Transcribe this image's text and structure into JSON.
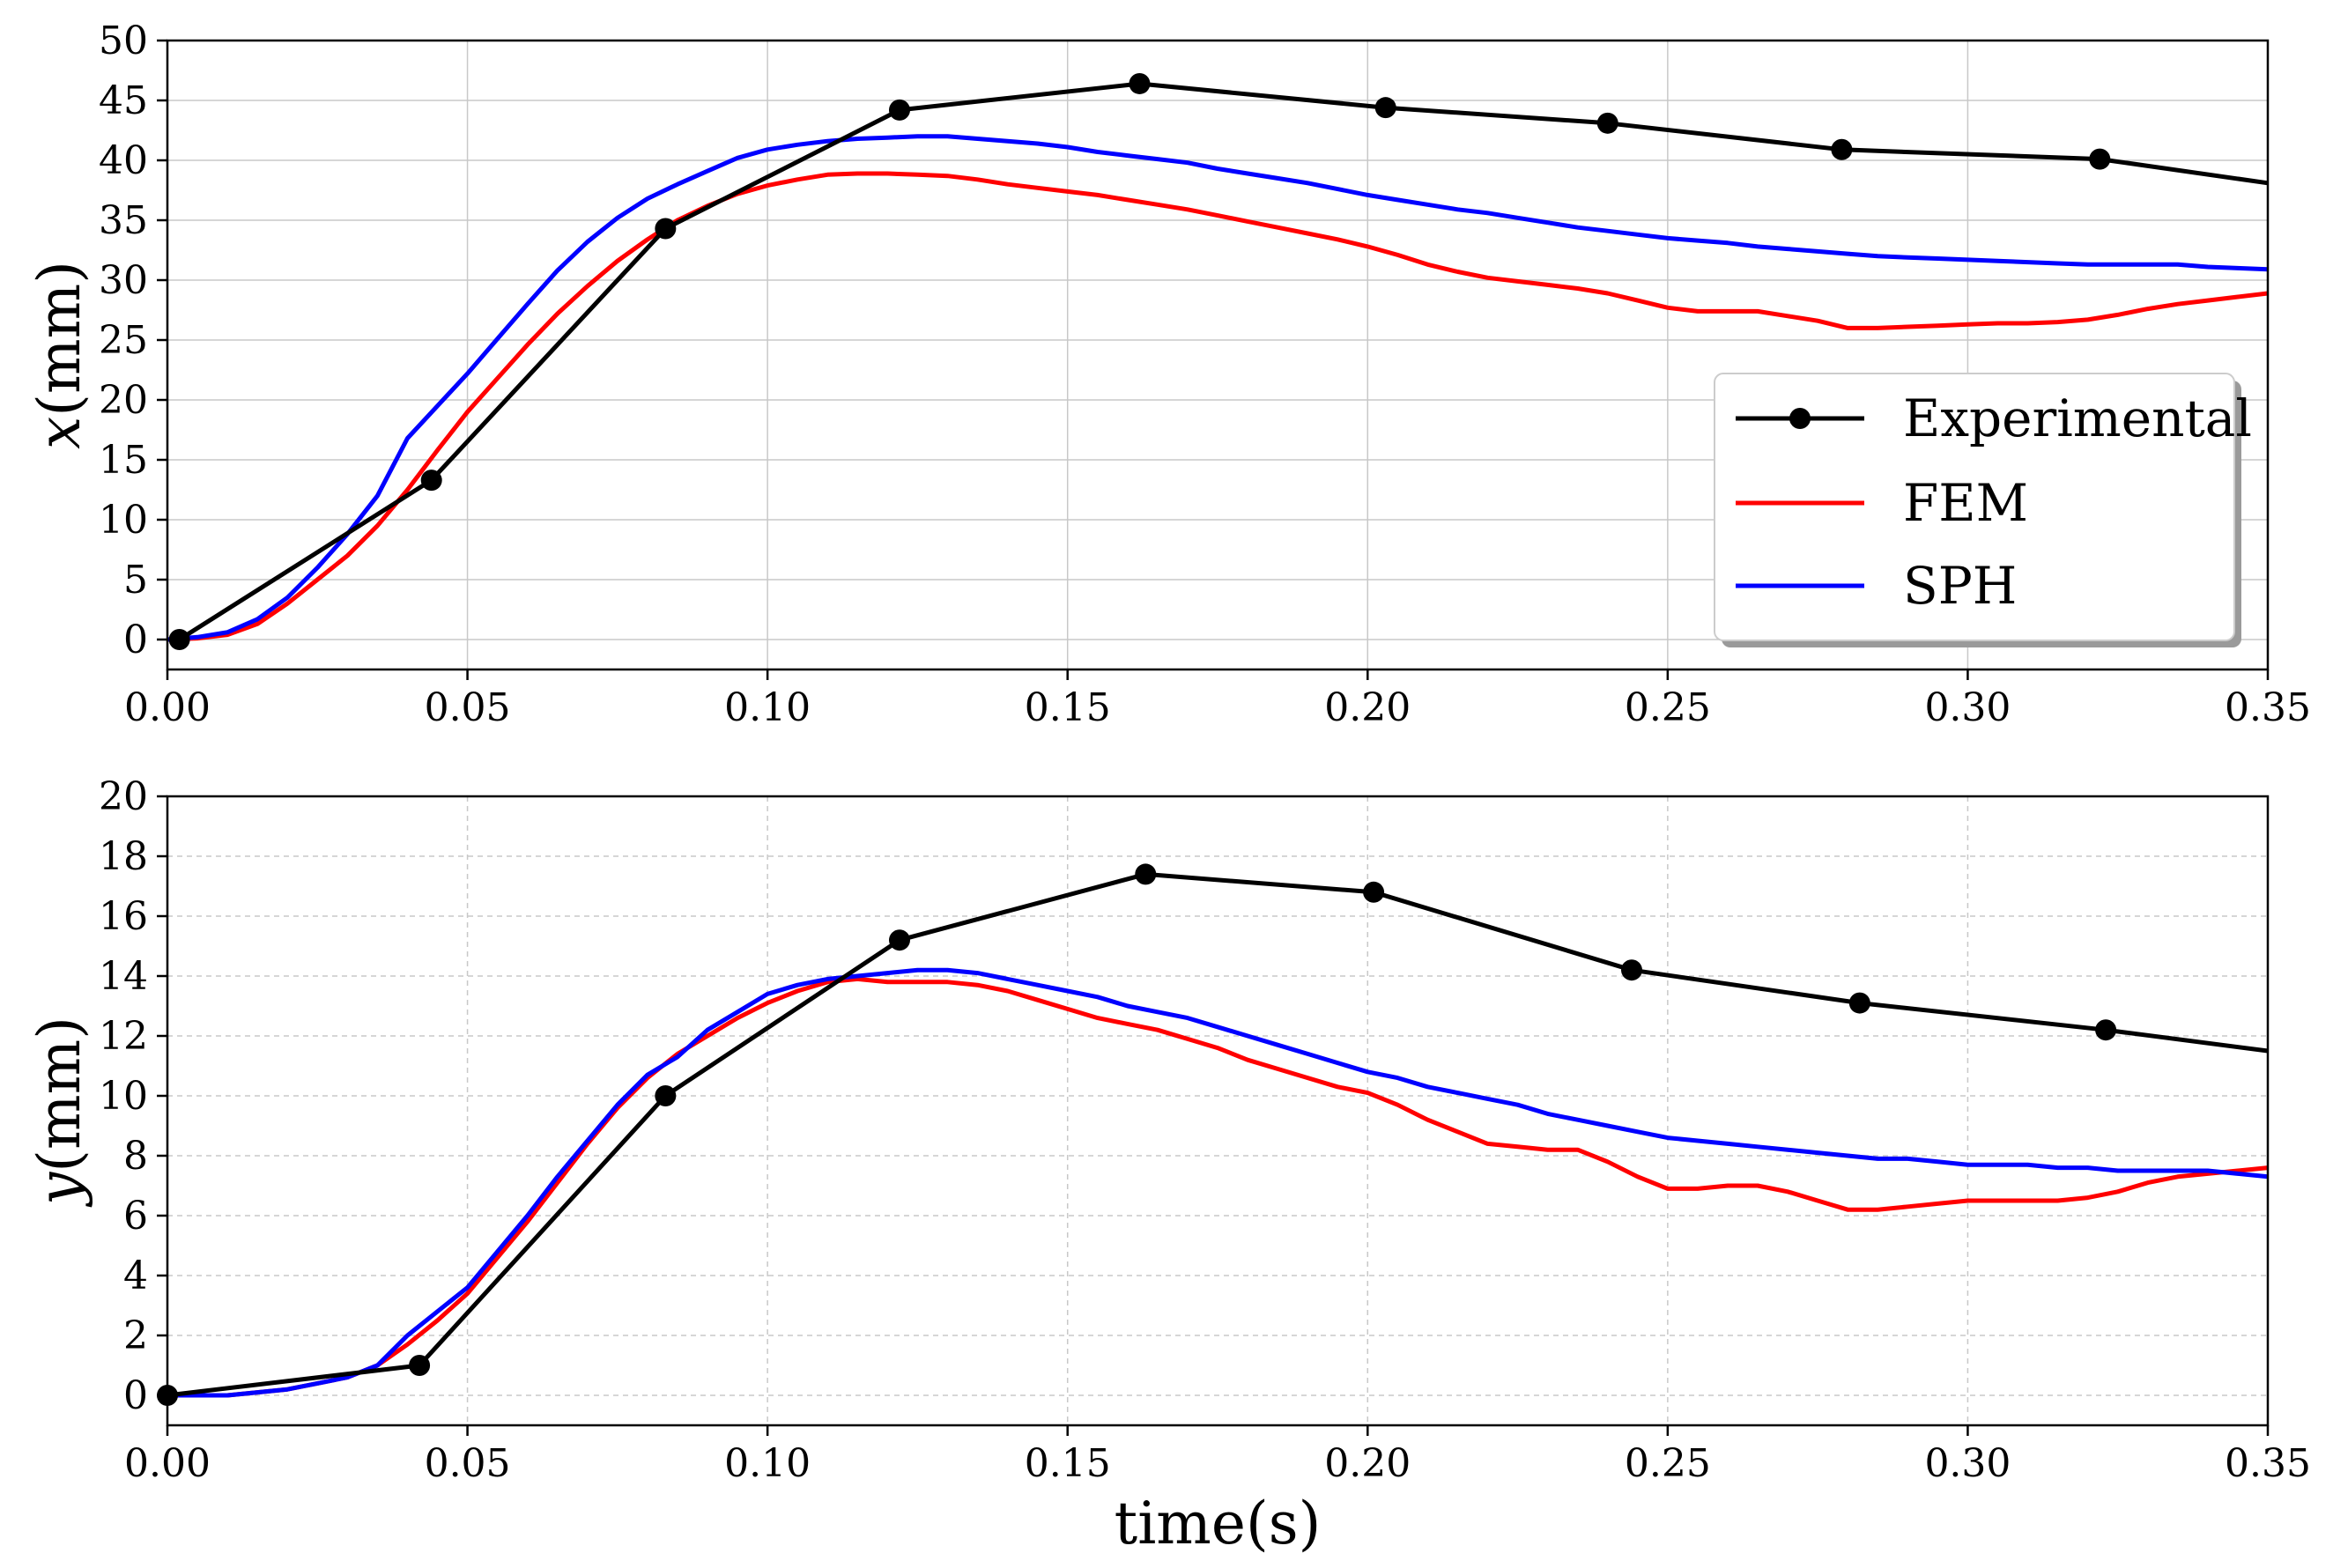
{
  "colors": {
    "experimental": "#000000",
    "fem": "#ff0000",
    "sph": "#0000ff",
    "grid": "#c8c8c8",
    "axis": "#000000"
  },
  "chart_data": [
    {
      "type": "line",
      "title": "",
      "ylabel_var": "x",
      "ylabel_unit": "(mm)",
      "xlabel": "",
      "xlim": [
        0.0,
        0.35
      ],
      "ylim": [
        -2.5,
        50
      ],
      "xticks": [
        0.0,
        0.05,
        0.1,
        0.15,
        0.2,
        0.25,
        0.3,
        0.35
      ],
      "xticklabels": [
        "0.00",
        "0.05",
        "0.10",
        "0.15",
        "0.20",
        "0.25",
        "0.30",
        "0.35"
      ],
      "yticks": [
        0,
        5,
        10,
        15,
        20,
        25,
        30,
        35,
        40,
        45,
        50
      ],
      "yticklabels": [
        "0",
        "5",
        "10",
        "15",
        "20",
        "25",
        "30",
        "35",
        "40",
        "45",
        "50"
      ],
      "grid": "solid",
      "legend": {
        "position": "right",
        "entries": [
          "Experimental",
          "FEM",
          "SPH"
        ]
      },
      "series": [
        {
          "name": "Experimental",
          "color_key": "experimental",
          "markers": true,
          "x": [
            0.002,
            0.044,
            0.083,
            0.122,
            0.162,
            0.203,
            0.24,
            0.279,
            0.322,
            0.35
          ],
          "y": [
            0.0,
            13.3,
            34.3,
            44.2,
            46.4,
            44.4,
            43.1,
            40.9,
            40.1,
            38.1
          ],
          "marker_count": 9
        },
        {
          "name": "FEM",
          "color_key": "fem",
          "markers": false,
          "x": [
            0.0,
            0.005,
            0.01,
            0.015,
            0.02,
            0.025,
            0.03,
            0.035,
            0.04,
            0.045,
            0.05,
            0.055,
            0.06,
            0.065,
            0.07,
            0.075,
            0.08,
            0.085,
            0.09,
            0.095,
            0.1,
            0.105,
            0.11,
            0.115,
            0.12,
            0.125,
            0.13,
            0.135,
            0.14,
            0.145,
            0.15,
            0.155,
            0.16,
            0.165,
            0.17,
            0.175,
            0.18,
            0.185,
            0.19,
            0.195,
            0.2,
            0.205,
            0.21,
            0.215,
            0.22,
            0.225,
            0.23,
            0.235,
            0.24,
            0.245,
            0.25,
            0.255,
            0.26,
            0.265,
            0.27,
            0.275,
            0.28,
            0.285,
            0.29,
            0.295,
            0.3,
            0.305,
            0.31,
            0.315,
            0.32,
            0.325,
            0.33,
            0.335,
            0.34,
            0.345,
            0.35
          ],
          "y": [
            0.0,
            0.1,
            0.4,
            1.3,
            3.0,
            5.0,
            7.0,
            9.5,
            12.5,
            15.8,
            19.0,
            21.8,
            24.6,
            27.2,
            29.5,
            31.6,
            33.4,
            35.0,
            36.2,
            37.2,
            37.9,
            38.4,
            38.8,
            38.9,
            38.9,
            38.8,
            38.7,
            38.4,
            38.0,
            37.7,
            37.4,
            37.1,
            36.7,
            36.3,
            35.9,
            35.4,
            34.9,
            34.4,
            33.9,
            33.4,
            32.8,
            32.1,
            31.3,
            30.7,
            30.2,
            29.9,
            29.6,
            29.3,
            28.9,
            28.3,
            27.7,
            27.4,
            27.4,
            27.4,
            27.0,
            26.6,
            26.0,
            26.0,
            26.1,
            26.2,
            26.3,
            26.4,
            26.4,
            26.5,
            26.7,
            27.1,
            27.6,
            28.0,
            28.3,
            28.6,
            28.9
          ]
        },
        {
          "name": "SPH",
          "color_key": "sph",
          "markers": false,
          "x": [
            0.0,
            0.005,
            0.01,
            0.015,
            0.02,
            0.025,
            0.03,
            0.035,
            0.04,
            0.045,
            0.05,
            0.055,
            0.06,
            0.065,
            0.07,
            0.075,
            0.08,
            0.085,
            0.09,
            0.095,
            0.1,
            0.105,
            0.11,
            0.115,
            0.12,
            0.125,
            0.13,
            0.135,
            0.14,
            0.145,
            0.15,
            0.155,
            0.16,
            0.165,
            0.17,
            0.175,
            0.18,
            0.185,
            0.19,
            0.195,
            0.2,
            0.205,
            0.21,
            0.215,
            0.22,
            0.225,
            0.23,
            0.235,
            0.24,
            0.245,
            0.25,
            0.255,
            0.26,
            0.265,
            0.27,
            0.275,
            0.28,
            0.285,
            0.29,
            0.295,
            0.3,
            0.305,
            0.31,
            0.315,
            0.32,
            0.325,
            0.33,
            0.335,
            0.34,
            0.345,
            0.35
          ],
          "y": [
            0.0,
            0.2,
            0.6,
            1.7,
            3.5,
            6.0,
            8.8,
            12.0,
            16.8,
            19.5,
            22.2,
            25.1,
            28.0,
            30.8,
            33.2,
            35.2,
            36.8,
            38.0,
            39.1,
            40.2,
            40.9,
            41.3,
            41.6,
            41.8,
            41.9,
            42.0,
            42.0,
            41.8,
            41.6,
            41.4,
            41.1,
            40.7,
            40.4,
            40.1,
            39.8,
            39.3,
            38.9,
            38.5,
            38.1,
            37.6,
            37.1,
            36.7,
            36.3,
            35.9,
            35.6,
            35.2,
            34.8,
            34.4,
            34.1,
            33.8,
            33.5,
            33.3,
            33.1,
            32.8,
            32.6,
            32.4,
            32.2,
            32.0,
            31.9,
            31.8,
            31.7,
            31.6,
            31.5,
            31.4,
            31.3,
            31.3,
            31.3,
            31.3,
            31.1,
            31.0,
            30.9
          ]
        }
      ]
    },
    {
      "type": "line",
      "title": "",
      "ylabel_var": "y",
      "ylabel_unit": "(mm)",
      "xlabel": "time(s)",
      "xlim": [
        0.0,
        0.35
      ],
      "ylim": [
        -1.0,
        20
      ],
      "xticks": [
        0.0,
        0.05,
        0.1,
        0.15,
        0.2,
        0.25,
        0.3,
        0.35
      ],
      "xticklabels": [
        "0.00",
        "0.05",
        "0.10",
        "0.15",
        "0.20",
        "0.25",
        "0.30",
        "0.35"
      ],
      "yticks": [
        0,
        2,
        4,
        6,
        8,
        10,
        12,
        14,
        16,
        18,
        20
      ],
      "yticklabels": [
        "0",
        "2",
        "4",
        "6",
        "8",
        "10",
        "12",
        "14",
        "16",
        "18",
        "20"
      ],
      "grid": "dashed",
      "series": [
        {
          "name": "Experimental",
          "color_key": "experimental",
          "markers": true,
          "x": [
            0.0,
            0.042,
            0.083,
            0.122,
            0.163,
            0.201,
            0.244,
            0.282,
            0.323,
            0.35
          ],
          "y": [
            0.0,
            1.0,
            10.0,
            15.2,
            17.4,
            16.8,
            14.2,
            13.1,
            12.2,
            11.5
          ],
          "marker_count": 9
        },
        {
          "name": "FEM",
          "color_key": "fem",
          "markers": false,
          "x": [
            0.0,
            0.005,
            0.01,
            0.015,
            0.02,
            0.025,
            0.03,
            0.035,
            0.04,
            0.045,
            0.05,
            0.055,
            0.06,
            0.065,
            0.07,
            0.075,
            0.08,
            0.085,
            0.09,
            0.095,
            0.1,
            0.105,
            0.11,
            0.115,
            0.12,
            0.125,
            0.13,
            0.135,
            0.14,
            0.145,
            0.15,
            0.155,
            0.16,
            0.165,
            0.17,
            0.175,
            0.18,
            0.185,
            0.19,
            0.195,
            0.2,
            0.205,
            0.21,
            0.215,
            0.22,
            0.225,
            0.23,
            0.235,
            0.24,
            0.245,
            0.25,
            0.255,
            0.26,
            0.265,
            0.27,
            0.275,
            0.28,
            0.285,
            0.29,
            0.295,
            0.3,
            0.305,
            0.31,
            0.315,
            0.32,
            0.325,
            0.33,
            0.335,
            0.34,
            0.345,
            0.35
          ],
          "y": [
            0.0,
            0.0,
            0.0,
            0.1,
            0.2,
            0.4,
            0.6,
            1.0,
            1.7,
            2.5,
            3.4,
            4.6,
            5.8,
            7.1,
            8.4,
            9.6,
            10.6,
            11.4,
            12.0,
            12.6,
            13.1,
            13.5,
            13.8,
            13.9,
            13.8,
            13.8,
            13.8,
            13.7,
            13.5,
            13.2,
            12.9,
            12.6,
            12.4,
            12.2,
            11.9,
            11.6,
            11.2,
            10.9,
            10.6,
            10.3,
            10.1,
            9.7,
            9.2,
            8.8,
            8.4,
            8.3,
            8.2,
            8.2,
            7.8,
            7.3,
            6.9,
            6.9,
            7.0,
            7.0,
            6.8,
            6.5,
            6.2,
            6.2,
            6.3,
            6.4,
            6.5,
            6.5,
            6.5,
            6.5,
            6.6,
            6.8,
            7.1,
            7.3,
            7.4,
            7.5,
            7.6
          ]
        },
        {
          "name": "SPH",
          "color_key": "sph",
          "markers": false,
          "x": [
            0.0,
            0.005,
            0.01,
            0.015,
            0.02,
            0.025,
            0.03,
            0.035,
            0.04,
            0.045,
            0.05,
            0.055,
            0.06,
            0.065,
            0.07,
            0.075,
            0.08,
            0.085,
            0.09,
            0.095,
            0.1,
            0.105,
            0.11,
            0.115,
            0.12,
            0.125,
            0.13,
            0.135,
            0.14,
            0.145,
            0.15,
            0.155,
            0.16,
            0.165,
            0.17,
            0.175,
            0.18,
            0.185,
            0.19,
            0.195,
            0.2,
            0.205,
            0.21,
            0.215,
            0.22,
            0.225,
            0.23,
            0.235,
            0.24,
            0.245,
            0.25,
            0.255,
            0.26,
            0.265,
            0.27,
            0.275,
            0.28,
            0.285,
            0.29,
            0.295,
            0.3,
            0.305,
            0.31,
            0.315,
            0.32,
            0.325,
            0.33,
            0.335,
            0.34,
            0.345,
            0.35
          ],
          "y": [
            0.0,
            0.0,
            0.0,
            0.1,
            0.2,
            0.4,
            0.6,
            1.0,
            2.0,
            2.8,
            3.6,
            4.8,
            6.0,
            7.3,
            8.5,
            9.7,
            10.7,
            11.3,
            12.2,
            12.8,
            13.4,
            13.7,
            13.9,
            14.0,
            14.1,
            14.2,
            14.2,
            14.1,
            13.9,
            13.7,
            13.5,
            13.3,
            13.0,
            12.8,
            12.6,
            12.3,
            12.0,
            11.7,
            11.4,
            11.1,
            10.8,
            10.6,
            10.3,
            10.1,
            9.9,
            9.7,
            9.4,
            9.2,
            9.0,
            8.8,
            8.6,
            8.5,
            8.4,
            8.3,
            8.2,
            8.1,
            8.0,
            7.9,
            7.9,
            7.8,
            7.7,
            7.7,
            7.7,
            7.6,
            7.6,
            7.5,
            7.5,
            7.5,
            7.5,
            7.4,
            7.3
          ]
        }
      ]
    }
  ]
}
